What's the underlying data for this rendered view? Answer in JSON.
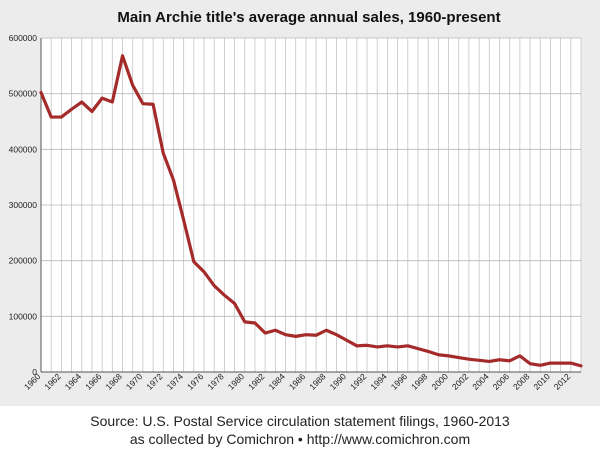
{
  "chart_data": {
    "type": "line",
    "title": "Main Archie title's average annual sales, 1960-present",
    "xlabel": "",
    "ylabel": "",
    "ylim": [
      0,
      600000
    ],
    "xlim": [
      1960,
      2013
    ],
    "grid": true,
    "y_ticks": [
      "0",
      "100000",
      "200000",
      "300000",
      "400000",
      "500000",
      "600000"
    ],
    "x_ticks": [
      "1960",
      "1962",
      "1964",
      "1966",
      "1968",
      "1970",
      "1972",
      "1974",
      "1976",
      "1978",
      "1980",
      "1982",
      "1984",
      "1986",
      "1988",
      "1990",
      "1992",
      "1994",
      "1996",
      "1998",
      "2000",
      "2002",
      "2004",
      "2006",
      "2008",
      "2010",
      "2012"
    ],
    "series": [
      {
        "name": "Average annual sales",
        "color": "#a52a2a",
        "x": [
          1960,
          1961,
          1962,
          1963,
          1964,
          1965,
          1966,
          1967,
          1968,
          1969,
          1970,
          1971,
          1972,
          1973,
          1974,
          1975,
          1976,
          1977,
          1978,
          1979,
          1980,
          1981,
          1982,
          1983,
          1984,
          1985,
          1986,
          1987,
          1988,
          1989,
          1990,
          1991,
          1992,
          1993,
          1994,
          1995,
          1996,
          1997,
          1998,
          1999,
          2000,
          2001,
          2002,
          2003,
          2004,
          2005,
          2006,
          2007,
          2008,
          2009,
          2010,
          2011,
          2012,
          2013
        ],
        "values": [
          502000,
          458000,
          458000,
          472000,
          485000,
          468000,
          492000,
          485000,
          568000,
          515000,
          482000,
          481000,
          393000,
          345000,
          273000,
          198000,
          180000,
          155000,
          138000,
          123000,
          90000,
          88000,
          70000,
          75000,
          67000,
          64000,
          67000,
          66000,
          75000,
          67000,
          57000,
          47000,
          48000,
          45000,
          47000,
          45000,
          47000,
          42000,
          37000,
          31000,
          29000,
          26000,
          23000,
          21000,
          19000,
          22000,
          20000,
          29000,
          15000,
          12000,
          16000,
          16000,
          16000,
          11000
        ]
      }
    ]
  },
  "caption": {
    "line1": "Source: U.S. Postal Service circulation statement filings, 1960-2013",
    "line2": "as collected by Comichron • http://www.comichron.com"
  }
}
